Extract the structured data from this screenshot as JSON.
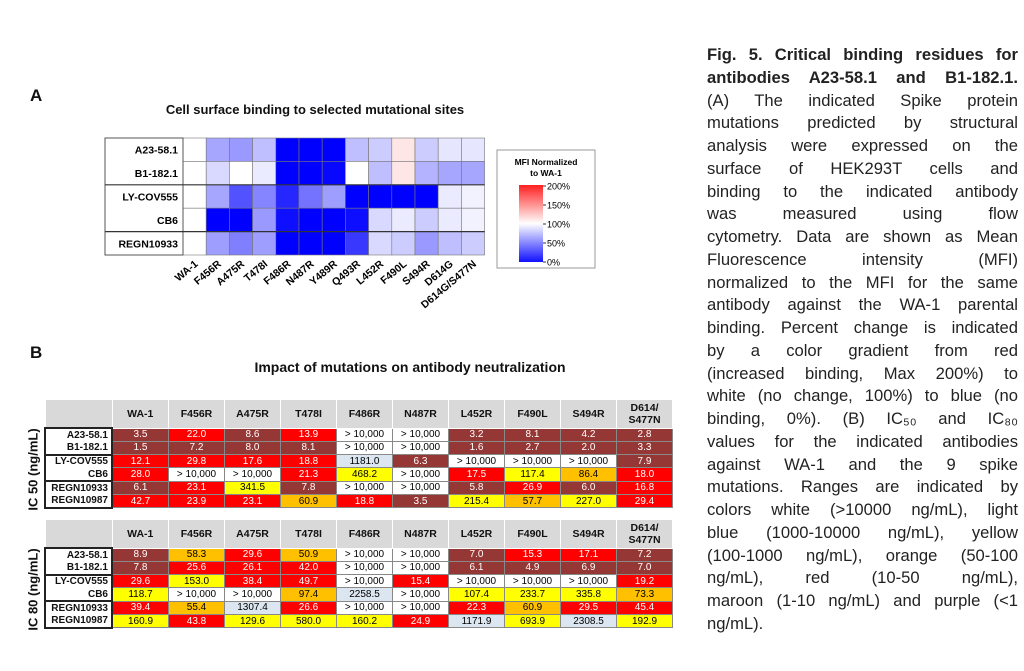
{
  "panel_a": {
    "label": "A",
    "title": "Cell surface binding to selected mutational sites",
    "legend": {
      "title_line1": "MFI Normalized",
      "title_line2": "to WA-1",
      "ticks": [
        "200%",
        "150%",
        "100%",
        "50%",
        "0%"
      ],
      "colors": {
        "high": "#ff0000",
        "mid": "#ffffff",
        "low": "#0000ff"
      }
    },
    "chart_data": {
      "type": "heatmap",
      "title": "Cell surface binding to selected mutational sites",
      "rows": [
        "A23-58.1",
        "B1-182.1",
        "LY-COV555",
        "CB6",
        "REGN10933"
      ],
      "columns": [
        "WA-1",
        "F456R",
        "A475R",
        "T478I",
        "F486R",
        "N487R",
        "Y489R",
        "Q493R",
        "L452R",
        "F490L",
        "S494R",
        "D614G",
        "D614G/S477N"
      ],
      "value_unit": "% MFI normalized to WA-1",
      "range": [
        0,
        200
      ],
      "values": [
        [
          100,
          65,
          60,
          75,
          0,
          0,
          0,
          75,
          80,
          110,
          80,
          90,
          90
        ],
        [
          100,
          85,
          100,
          92,
          0,
          0,
          3,
          100,
          75,
          110,
          70,
          65,
          65
        ],
        [
          100,
          65,
          32,
          52,
          15,
          45,
          62,
          0,
          0,
          0,
          0,
          92,
          95
        ],
        [
          100,
          0,
          0,
          60,
          6,
          0,
          0,
          5,
          85,
          92,
          80,
          92,
          95
        ],
        [
          100,
          62,
          50,
          62,
          0,
          0,
          0,
          22,
          85,
          80,
          60,
          75,
          80
        ]
      ]
    }
  },
  "panel_b": {
    "label": "B",
    "title": "Impact of mutations on antibody neutralization",
    "columns": [
      "WA-1",
      "F456R",
      "A475R",
      "T478I",
      "F486R",
      "N487R",
      "L452R",
      "F490L",
      "S494R",
      "D614/ S477N"
    ],
    "range_colors": {
      "white": "#ffffff",
      "light_blue": "#dce6f1",
      "yellow": "#ffff00",
      "orange": "#ffc000",
      "red": "#ff0000",
      "maroon": "#953735",
      "purple": "#7030a0"
    },
    "ic50": {
      "axis_label": "IC 50 (ng/mL)",
      "rows": [
        {
          "name": "A23-58.1",
          "values": [
            "3.5",
            "22.0",
            "8.6",
            "13.9",
            "> 10,000",
            "> 10,000",
            "3.2",
            "8.1",
            "4.2",
            "2.8"
          ]
        },
        {
          "name": "B1-182.1",
          "values": [
            "1.5",
            "7.2",
            "8.0",
            "8.1",
            "> 10,000",
            "> 10,000",
            "1.6",
            "2.7",
            "2.0",
            "3.3"
          ]
        },
        {
          "name": "LY-COV555",
          "values": [
            "12.1",
            "29.8",
            "17.6",
            "18.8",
            "1181.0",
            "6.3",
            "> 10,000",
            "> 10,000",
            "> 10,000",
            "7.9"
          ]
        },
        {
          "name": "CB6",
          "values": [
            "28.0",
            "> 10,000",
            "> 10,000",
            "21.3",
            "468.2",
            "> 10,000",
            "17.5",
            "117.4",
            "86.4",
            "18.0"
          ]
        },
        {
          "name": "REGN10933",
          "values": [
            "6.1",
            "23.1",
            "341.5",
            "7.8",
            "> 10,000",
            "> 10,000",
            "5.8",
            "26.9",
            "6.0",
            "16.8"
          ]
        },
        {
          "name": "REGN10987",
          "values": [
            "42.7",
            "23.9",
            "23.1",
            "60.9",
            "18.8",
            "3.5",
            "215.4",
            "57.7",
            "227.0",
            "29.4"
          ]
        }
      ]
    },
    "ic80": {
      "axis_label": "IC 80 (ng/mL)",
      "rows": [
        {
          "name": "A23-58.1",
          "values": [
            "8.9",
            "58.3",
            "29.6",
            "50.9",
            "> 10,000",
            "> 10,000",
            "7.0",
            "15.3",
            "17.1",
            "7.2"
          ]
        },
        {
          "name": "B1-182.1",
          "values": [
            "7.8",
            "25.6",
            "26.1",
            "42.0",
            "> 10,000",
            "> 10,000",
            "6.1",
            "4.9",
            "6.9",
            "7.0"
          ]
        },
        {
          "name": "LY-COV555",
          "values": [
            "29.6",
            "153.0",
            "38.4",
            "49.7",
            "> 10,000",
            "15.4",
            "> 10,000",
            "> 10,000",
            "> 10,000",
            "19.2"
          ]
        },
        {
          "name": "CB6",
          "values": [
            "118.7",
            "> 10,000",
            "> 10,000",
            "97.4",
            "2258.5",
            "> 10,000",
            "107.4",
            "233.7",
            "335.8",
            "73.3"
          ]
        },
        {
          "name": "REGN10933",
          "values": [
            "39.4",
            "55.4",
            "1307.4",
            "26.6",
            "> 10,000",
            "> 10,000",
            "22.3",
            "60.9",
            "29.5",
            "45.4"
          ]
        },
        {
          "name": "REGN10987",
          "values": [
            "160.9",
            "43.8",
            "129.6",
            "580.0",
            "160.2",
            "24.9",
            "1171.9",
            "693.9",
            "2308.5",
            "192.9"
          ]
        }
      ]
    }
  },
  "caption": {
    "lines": [
      "Fig. 5. Critical binding residues for",
      "antibodies A23-58.1 and B1-182.1.",
      "(A) The indicated Spike protein",
      "mutations predicted by structural",
      "analysis were expressed on the",
      "surface of HEK293T cells and",
      "binding to the indicated antibody",
      "was measured using flow",
      "cytometry. Data are shown as Mean",
      "Fluorescence intensity (MFI)",
      "normalized to the MFI for the same",
      "antibody against the WA-1 parental",
      "binding. Percent change is indicated",
      "by a color gradient from red",
      "(increased binding, Max 200%) to",
      "white (no change, 100%) to blue (no",
      "binding, 0%). (B) IC₅₀ and IC₈₀",
      "values for the indicated antibodies",
      "against WA-1 and the 9 spike",
      "mutations. Ranges are indicated by",
      "colors white (>10000 ng/mL), light",
      "blue (1000-10000 ng/mL), yellow",
      "(100-1000 ng/mL), orange (50-100",
      "ng/mL), red (10-50 ng/mL),",
      "maroon (1-10 ng/mL) and purple (<1",
      "ng/mL)."
    ]
  }
}
